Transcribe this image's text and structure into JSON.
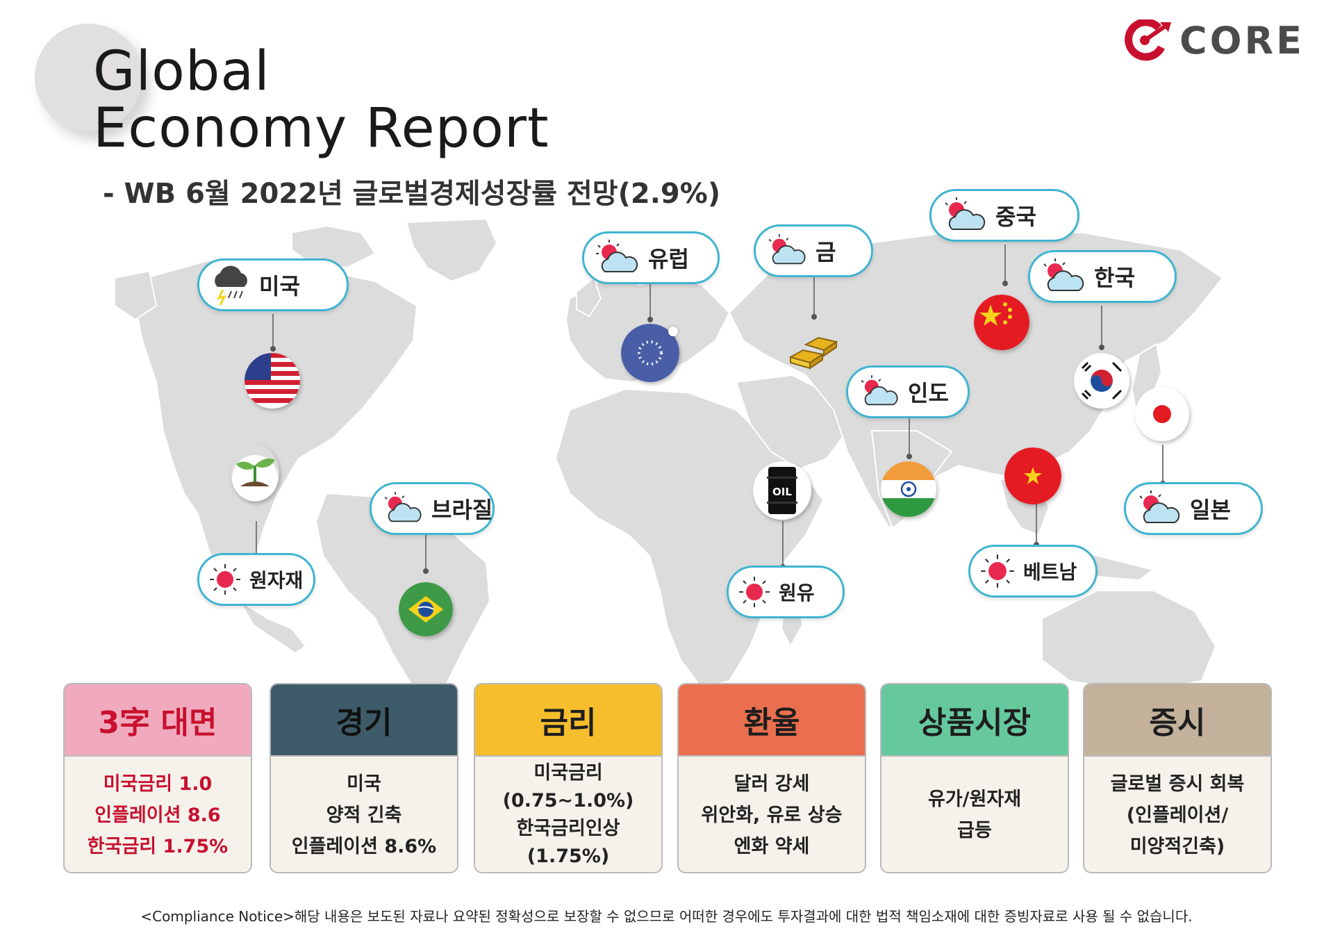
{
  "header": {
    "title_line1": "Global",
    "title_line2": "Economy Report",
    "subtitle": "- WB 6월 2022년 글로벌경제성장률 전망(2.9%)"
  },
  "logo": {
    "text": "CORE",
    "color": "#c8102e"
  },
  "map_labels": {
    "usa": "미국",
    "europe": "유럽",
    "gold": "금",
    "china": "중국",
    "korea": "한국",
    "india": "인도",
    "brazil": "브라질",
    "commodities": "원자재",
    "oil": "원유",
    "vietnam": "베트남",
    "japan": "일본"
  },
  "icons": {
    "oil_text": "OIL",
    "weather_storm": "storm-cloud-icon",
    "weather_partly": "partly-cloudy-icon",
    "weather_sunny": "sun-icon"
  },
  "cards": [
    {
      "title": "3字 대면",
      "lines": [
        "미국금리 1.0",
        "인플레이션 8.6",
        "한국금리 1.75%"
      ],
      "color": "#f0a9bd"
    },
    {
      "title": "경기",
      "lines": [
        "미국",
        "양적 긴축",
        "인플레이션 8.6%"
      ],
      "color": "#3e5b69"
    },
    {
      "title": "금리",
      "lines": [
        "미국금리",
        "(0.75~1.0%)",
        "한국금리인상",
        "(1.75%)"
      ],
      "color": "#f6be2d"
    },
    {
      "title": "환율",
      "lines": [
        "달러 강세",
        "위안화, 유로 상승",
        "엔화 약세"
      ],
      "color": "#e96f4f"
    },
    {
      "title": "상품시장",
      "lines": [
        "유가/원자재",
        "급등"
      ],
      "color": "#66c99e"
    },
    {
      "title": "증시",
      "lines": [
        "글로벌 증시 회복",
        "(인플레이션/",
        "미양적긴축)"
      ],
      "color": "#c3b19b"
    }
  ],
  "footer": {
    "notice": "<Compliance Notice>해당 내용은 보도된 자료나 요약된 정확성으로 보장할 수 없으므로 어떠한 경우에도 투자결과에 대한 법적 책임소재에 대한 증빙자료로 사용 될 수 없습니다."
  }
}
